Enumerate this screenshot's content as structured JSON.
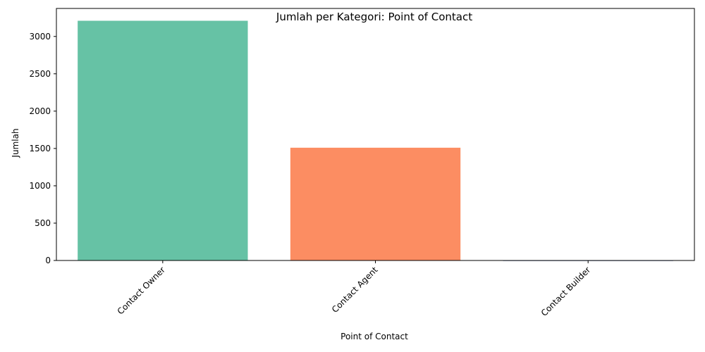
{
  "chart_data": {
    "type": "bar",
    "title": "Jumlah per Kategori: Point of Contact",
    "xlabel": "Point of Contact",
    "ylabel": "Jumlah",
    "categories": [
      "Contact Owner",
      "Contact Agent",
      "Contact Builder"
    ],
    "values": [
      3210,
      1510,
      2
    ],
    "colors": [
      "#66c2a5",
      "#fc8d62",
      "#8da0cb"
    ],
    "ylim": [
      0,
      3375
    ],
    "yticks": [
      0,
      500,
      1000,
      1500,
      2000,
      2500,
      3000
    ],
    "ytick_labels": [
      "0",
      "500",
      "1000",
      "1500",
      "2000",
      "2500",
      "3000"
    ],
    "grid": false,
    "legend": "none"
  }
}
